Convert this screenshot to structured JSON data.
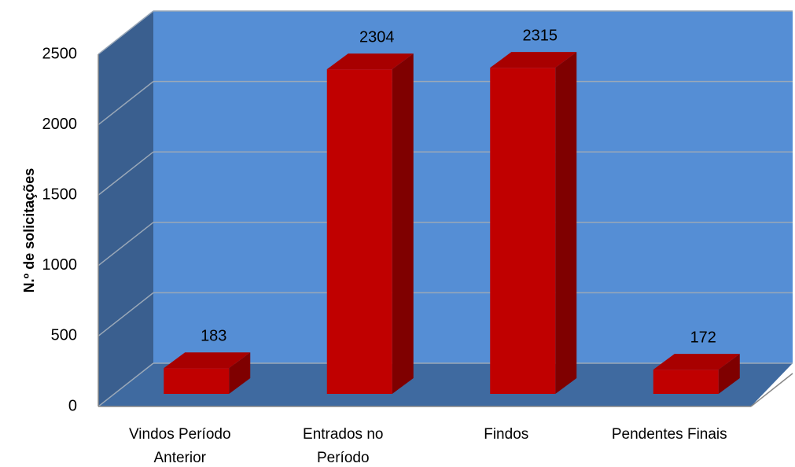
{
  "chart_data": {
    "type": "bar3d",
    "y_label": "N.º de solicitações",
    "categories": [
      "Vindos Período Anterior",
      "Entrados no Período",
      "Findos",
      "Pendentes Finais"
    ],
    "values": [
      183,
      2304,
      2315,
      172
    ],
    "color": "#c00000",
    "ylim": [
      0,
      2500
    ],
    "yticks": [
      0,
      500,
      1000,
      1500,
      2000,
      2500
    ],
    "grid": true
  }
}
